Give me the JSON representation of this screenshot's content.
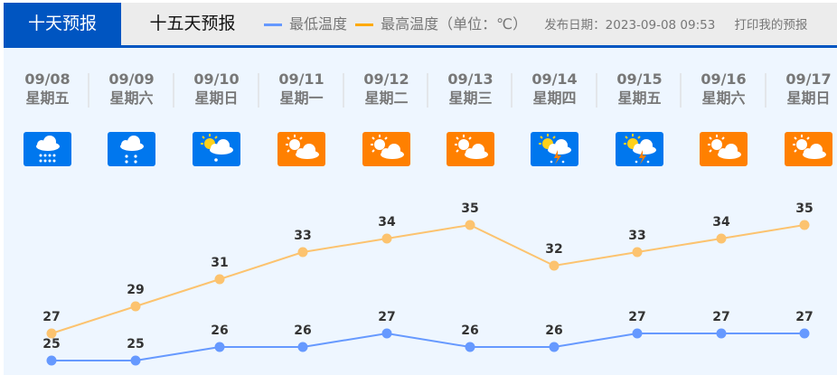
{
  "tabs": [
    {
      "label": "十天预报",
      "active": true
    },
    {
      "label": "十五天预报",
      "active": false
    }
  ],
  "legend": {
    "low_label": "最低温度",
    "high_label": "最高温度（单位：℃）",
    "low_color": "#6699ff",
    "high_color": "#ffaa00"
  },
  "publish": "发布日期：2023-09-08 09:53",
  "print_label": "打印我的预报",
  "days": [
    {
      "date": "09/08",
      "weekday": "星期五",
      "icon": "rain-icon"
    },
    {
      "date": "09/09",
      "weekday": "星期六",
      "icon": "light-rain-icon"
    },
    {
      "date": "09/10",
      "weekday": "星期日",
      "icon": "sun-cloud-rain-icon"
    },
    {
      "date": "09/11",
      "weekday": "星期一",
      "icon": "partly-cloudy-icon"
    },
    {
      "date": "09/12",
      "weekday": "星期二",
      "icon": "partly-cloudy-icon"
    },
    {
      "date": "09/13",
      "weekday": "星期三",
      "icon": "partly-cloudy-icon"
    },
    {
      "date": "09/14",
      "weekday": "星期四",
      "icon": "thunderstorm-icon"
    },
    {
      "date": "09/15",
      "weekday": "星期五",
      "icon": "thunderstorm-icon"
    },
    {
      "date": "09/16",
      "weekday": "星期六",
      "icon": "partly-cloudy-icon"
    },
    {
      "date": "09/17",
      "weekday": "星期日",
      "icon": "partly-cloudy-icon"
    }
  ],
  "chart_data": {
    "type": "line",
    "categories": [
      "09/08",
      "09/09",
      "09/10",
      "09/11",
      "09/12",
      "09/13",
      "09/14",
      "09/15",
      "09/16",
      "09/17"
    ],
    "series": [
      {
        "name": "最高温度",
        "color": "#fcc36f",
        "values": [
          27,
          29,
          31,
          33,
          34,
          35,
          32,
          33,
          34,
          35
        ]
      },
      {
        "name": "最低温度",
        "color": "#6699ff",
        "values": [
          25,
          25,
          26,
          26,
          27,
          26,
          26,
          27,
          27,
          27
        ]
      }
    ],
    "grid": false
  }
}
